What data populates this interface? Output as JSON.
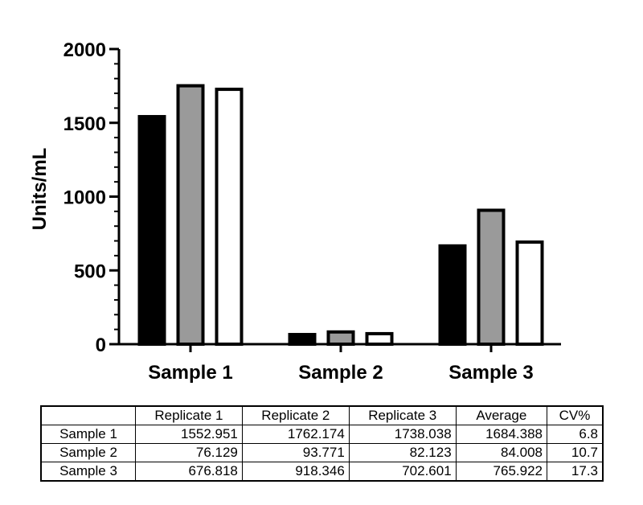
{
  "chart_data": {
    "type": "bar",
    "ylabel": "Units/mL",
    "xlabel": "",
    "ylim": [
      0,
      2000
    ],
    "yticks": [
      0,
      500,
      1000,
      1500,
      2000
    ],
    "categories": [
      "Sample 1",
      "Sample 2",
      "Sample 3"
    ],
    "series": [
      {
        "values": [
          1552.951,
          76.129,
          676.818
        ],
        "color": "#000000"
      },
      {
        "values": [
          1762.174,
          93.771,
          918.346
        ],
        "color": "#9a9a9a"
      },
      {
        "values": [
          1738.038,
          82.123,
          702.601
        ],
        "color": "#ffffff"
      }
    ],
    "grid": false,
    "legend": "none"
  },
  "table": {
    "headers": [
      "",
      "Replicate 1",
      "Replicate 2",
      "Replicate 3",
      "Average",
      "CV%"
    ],
    "rows": [
      [
        "Sample 1",
        "1552.951",
        "1762.174",
        "1738.038",
        "1684.388",
        "6.8"
      ],
      [
        "Sample 2",
        "76.129",
        "93.771",
        "82.123",
        "84.008",
        "10.7"
      ],
      [
        "Sample 3",
        "676.818",
        "918.346",
        "702.601",
        "765.922",
        "17.3"
      ]
    ]
  }
}
